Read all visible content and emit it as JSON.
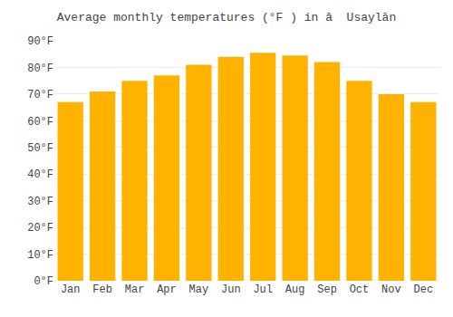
{
  "chart_data": {
    "type": "bar",
    "title": "Average monthly temperatures (°F ) in â  Usaylān",
    "categories": [
      "Jan",
      "Feb",
      "Mar",
      "Apr",
      "May",
      "Jun",
      "Jul",
      "Aug",
      "Sep",
      "Oct",
      "Nov",
      "Dec"
    ],
    "values": [
      67,
      71,
      75,
      77,
      81,
      84,
      85.5,
      84.5,
      82,
      75,
      70,
      67
    ],
    "color": "#FFB300",
    "ylim": [
      0,
      90
    ],
    "yticks": [
      {
        "value": 0,
        "label": "0°F"
      },
      {
        "value": 10,
        "label": "10°F"
      },
      {
        "value": 20,
        "label": "20°F"
      },
      {
        "value": 30,
        "label": "30°F"
      },
      {
        "value": 40,
        "label": "40°F"
      },
      {
        "value": 50,
        "label": "50°F"
      },
      {
        "value": 60,
        "label": "60°F"
      },
      {
        "value": 70,
        "label": "70°F"
      },
      {
        "value": 80,
        "label": "80°F"
      },
      {
        "value": 90,
        "label": "90°F"
      }
    ],
    "grid": true
  }
}
